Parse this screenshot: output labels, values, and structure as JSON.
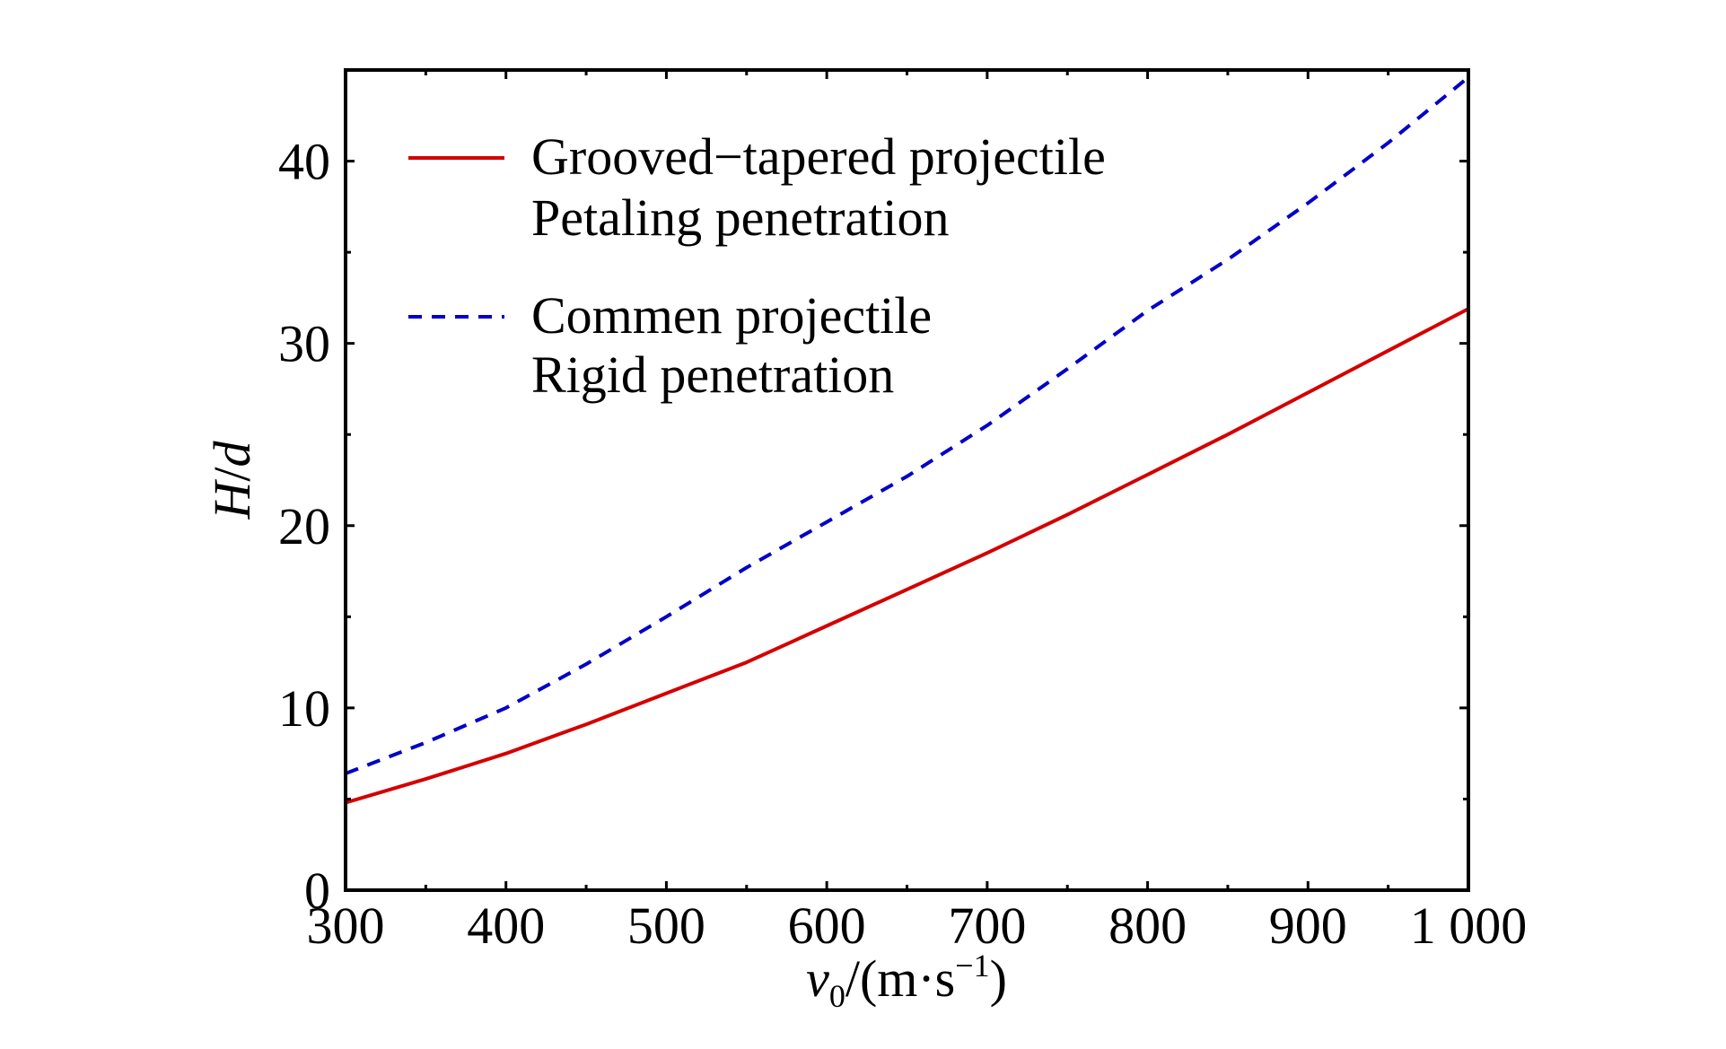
{
  "chart_data": {
    "type": "line",
    "title": "",
    "xlabel": {
      "var": "v",
      "sub": "0",
      "rest": "/(m·s",
      "sup": "−1",
      "close": ")"
    },
    "ylabel": {
      "var": "H",
      "rest": "/",
      "var2": "d"
    },
    "xlim": [
      300,
      1000
    ],
    "ylim": [
      0,
      45
    ],
    "xticks": [
      300,
      400,
      500,
      600,
      700,
      800,
      900,
      1000
    ],
    "xtick_labels": [
      "300",
      "400",
      "500",
      "600",
      "700",
      "800",
      "900",
      "1 000"
    ],
    "yticks": [
      0,
      10,
      20,
      30,
      40
    ],
    "ytick_labels": [
      "0",
      "10",
      "20",
      "30",
      "40"
    ],
    "grid": false,
    "legend_position": "top-left",
    "series": [
      {
        "name": "Grooved−tapered projectile",
        "name_line2": "Petaling penetration",
        "color": "#d40000",
        "style": "solid",
        "x": [
          300,
          350,
          400,
          450,
          500,
          550,
          600,
          650,
          700,
          750,
          800,
          850,
          900,
          950,
          1000
        ],
        "y": [
          4.8,
          6.1,
          7.5,
          9.1,
          10.8,
          12.5,
          14.5,
          16.5,
          18.5,
          20.6,
          22.8,
          25.0,
          27.3,
          29.6,
          31.9
        ]
      },
      {
        "name": "Commen projectile",
        "name_line2": "Rigid penetration",
        "color": "#0000c8",
        "style": "dashed",
        "x": [
          300,
          350,
          400,
          450,
          500,
          550,
          600,
          650,
          700,
          750,
          800,
          850,
          900,
          950,
          1000
        ],
        "y": [
          6.4,
          8.1,
          10.0,
          12.4,
          15.0,
          17.7,
          20.2,
          22.7,
          25.5,
          28.6,
          31.8,
          34.6,
          37.7,
          41.0,
          44.6
        ]
      }
    ]
  }
}
